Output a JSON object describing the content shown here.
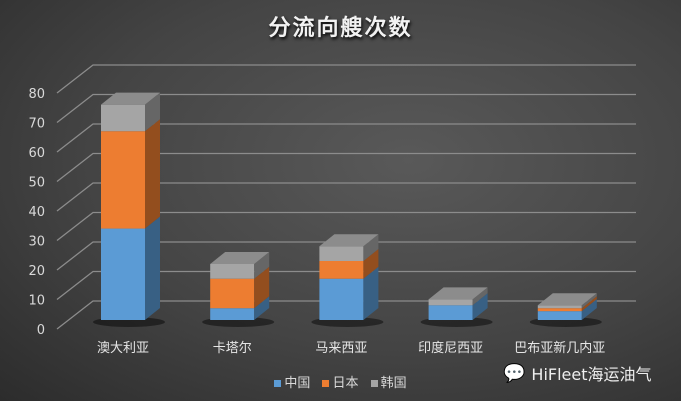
{
  "chart_data": {
    "type": "bar",
    "stacked": true,
    "three_d": true,
    "title": "分流向艘次数",
    "categories": [
      "澳大利亚",
      "卡塔尔",
      "马来西亚",
      "印度尼西亚",
      "巴布亚新几内亚"
    ],
    "series": [
      {
        "name": "中国",
        "color": "#5b9bd5",
        "values": [
          31,
          4,
          14,
          5,
          3
        ]
      },
      {
        "name": "日本",
        "color": "#ed7d31",
        "values": [
          33,
          10,
          6,
          0,
          1
        ]
      },
      {
        "name": "韩国",
        "color": "#a5a5a5",
        "values": [
          9,
          5,
          5,
          2,
          1
        ]
      }
    ],
    "yticks": [
      "0",
      "10",
      "20",
      "30",
      "40",
      "50",
      "60",
      "70",
      "80"
    ],
    "ylim": [
      0,
      90
    ],
    "grid": true,
    "legend_position": "bottom"
  },
  "watermark": {
    "text": "HiFleet海运油气",
    "icon": "wechat-icon"
  }
}
